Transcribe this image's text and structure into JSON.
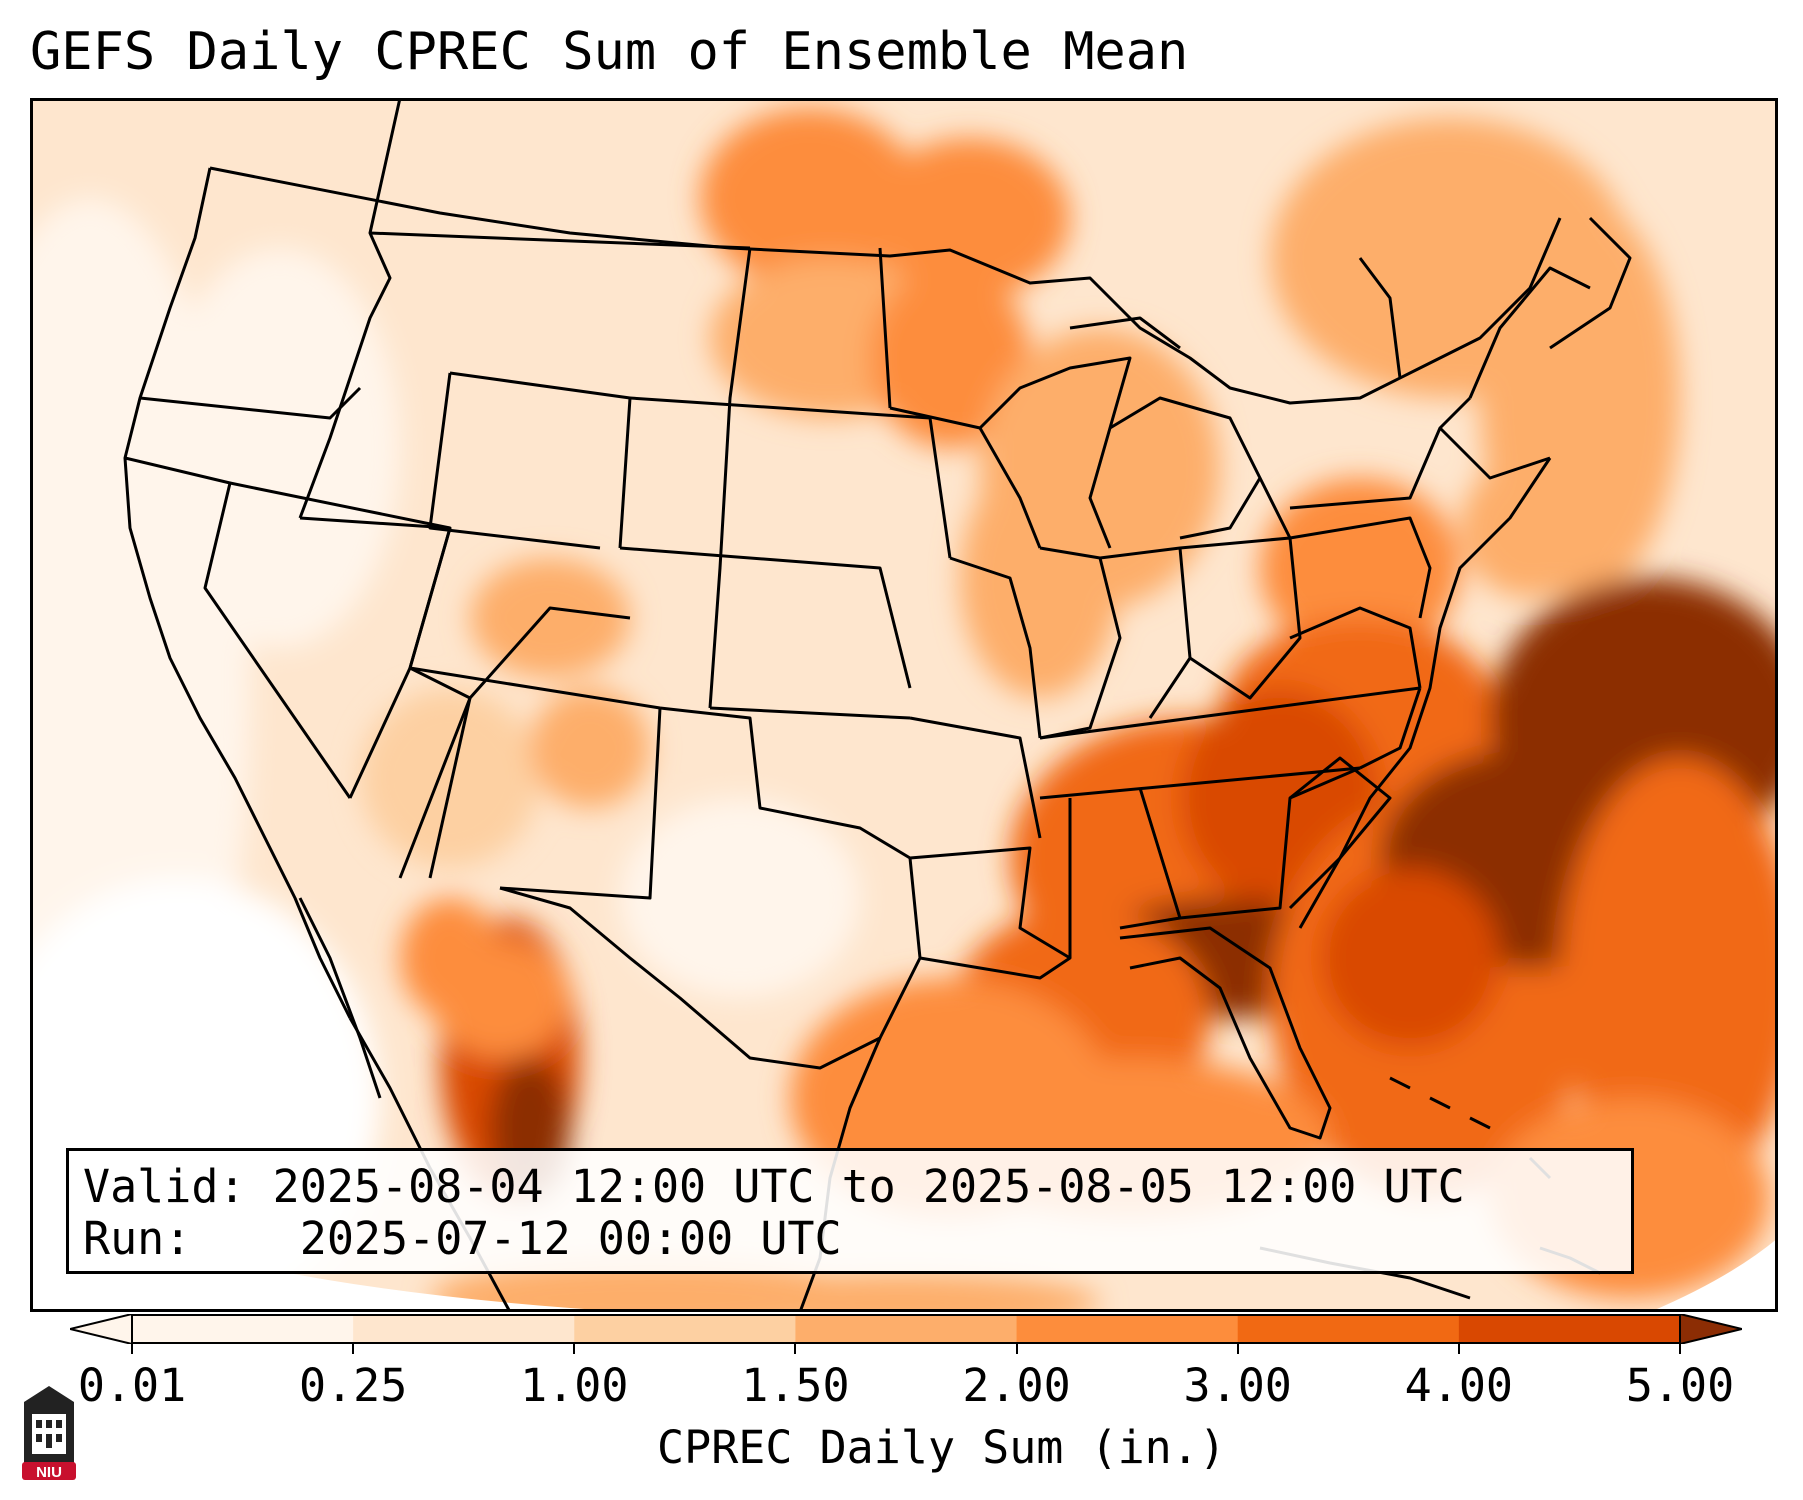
{
  "title": "GEFS Daily CPREC Sum of Ensemble Mean",
  "valid_label": "Valid:",
  "valid_value": "2025-08-04 12:00 UTC to 2025-08-05 12:00 UTC",
  "run_label": "Run:",
  "run_value": "2025-07-12 00:00 UTC",
  "colorbar": {
    "label": "CPREC Daily Sum (in.)",
    "ticks": [
      "0.01",
      "0.25",
      "1.00",
      "1.50",
      "2.00",
      "3.00",
      "4.00",
      "5.00"
    ],
    "colors": [
      "#fff5eb",
      "#fee6ce",
      "#fdd0a2",
      "#fdae6b",
      "#fd8d3c",
      "#f16913",
      "#d94801",
      "#8c2d04"
    ],
    "extend": "both"
  },
  "logo": {
    "text": "NIU",
    "icon": "university-tower-icon",
    "color": "#c8102e"
  },
  "map": {
    "region": "Contiguous United States",
    "colormap": "Oranges",
    "heaviest_areas": [
      "Southeast US",
      "Atlantic coast offshore",
      "Gulf Coast",
      "Western Mexico"
    ]
  }
}
